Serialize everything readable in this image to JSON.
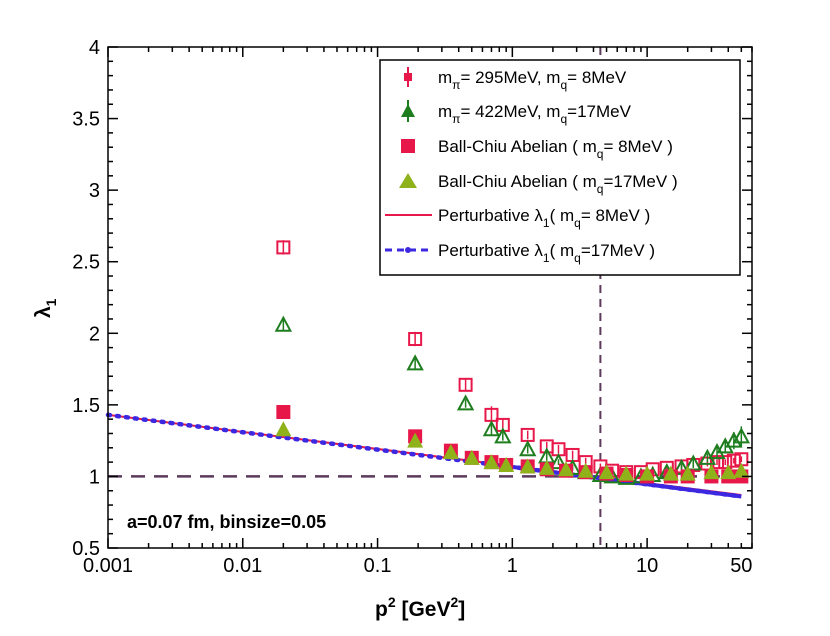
{
  "chart_data": {
    "type": "scatter",
    "xscale": "log",
    "xlim": [
      0.001,
      60
    ],
    "ylim": [
      0.5,
      4
    ],
    "xticks": [
      {
        "value": 0.001,
        "label": "0.001"
      },
      {
        "value": 0.01,
        "label": "0.01"
      },
      {
        "value": 0.1,
        "label": "0.1"
      },
      {
        "value": 1,
        "label": "1"
      },
      {
        "value": 10,
        "label": "10"
      },
      {
        "value": 50,
        "label": "50"
      }
    ],
    "yticks": [
      {
        "value": 0.5,
        "label": "0.5"
      },
      {
        "value": 1,
        "label": "1"
      },
      {
        "value": 1.5,
        "label": "1.5"
      },
      {
        "value": 2,
        "label": "2"
      },
      {
        "value": 2.5,
        "label": "2.5"
      },
      {
        "value": 3,
        "label": "3"
      },
      {
        "value": 3.5,
        "label": "3.5"
      },
      {
        "value": 4,
        "label": "4"
      }
    ],
    "xlabel": {
      "base": "p",
      "sup1": "2",
      "mid": " [GeV",
      "sup2": "2",
      "end": "]"
    },
    "ylabel": {
      "base": "λ",
      "sub": "1"
    },
    "annotation": "a=0.07 fm, binsize=0.05",
    "reference_lines": [
      {
        "orientation": "horizontal",
        "value": 1,
        "style": "dashed",
        "color": "#5b3a5b"
      },
      {
        "orientation": "vertical",
        "value": 4.5,
        "style": "dashed",
        "color": "#5b3a5b"
      }
    ],
    "legend": {
      "position": "top-right",
      "entries": [
        {
          "text": "mπ= 295MeV, mq= 8MeV",
          "parts": {
            "a": "m",
            "a_sub": "π",
            "b": "= 295MeV, m",
            "b_sub": "q",
            "c": "= 8MeV"
          }
        },
        {
          "text": "mπ= 422MeV, mq=17MeV",
          "parts": {
            "a": "m",
            "a_sub": "π",
            "b": "= 422MeV, m",
            "b_sub": "q",
            "c": "=17MeV"
          }
        },
        {
          "text": "Ball-Chiu Abelian ( mq= 8MeV )",
          "parts": {
            "a": "Ball-Chiu Abelian ( m",
            "a_sub": "q",
            "b": "= 8MeV )"
          }
        },
        {
          "text": "Ball-Chiu Abelian ( mq=17MeV )",
          "parts": {
            "a": "Ball-Chiu Abelian ( m",
            "a_sub": "q",
            "b": "=17MeV )"
          }
        },
        {
          "text": "Perturbative λ1( mq= 8MeV )",
          "parts": {
            "a": "Perturbative ",
            "lam": "λ",
            "lam_sub": "1",
            "b": "( m",
            "b_sub": "q",
            "c": "= 8MeV )"
          }
        },
        {
          "text": "Perturbative λ1( mq=17MeV )",
          "parts": {
            "a": "Perturbative ",
            "lam": "λ",
            "lam_sub": "1",
            "b": "( m",
            "b_sub": "q",
            "c": "=17MeV )"
          }
        }
      ]
    },
    "series": [
      {
        "name": "mπ= 295MeV, mq= 8MeV",
        "marker": "open-square",
        "color": "#e8174a",
        "x": [
          0.02,
          0.19,
          0.45,
          0.7,
          0.85,
          1.3,
          1.8,
          2.2,
          2.8,
          3.5,
          4.5,
          5.5,
          7,
          9,
          11,
          14,
          18,
          22,
          28,
          33,
          38,
          44,
          50
        ],
        "y": [
          2.6,
          1.96,
          1.64,
          1.43,
          1.36,
          1.29,
          1.21,
          1.19,
          1.15,
          1.1,
          1.07,
          1.04,
          1.03,
          1.03,
          1.05,
          1.06,
          1.07,
          1.08,
          1.09,
          1.1,
          1.1,
          1.11,
          1.12
        ],
        "err": [
          0.05,
          0.05,
          0.04,
          0.06,
          0.04,
          0.03,
          0.03,
          0.03,
          0.03,
          0.03,
          0.02,
          0.02,
          0.02,
          0.02,
          0.02,
          0.02,
          0.02,
          0.02,
          0.02,
          0.02,
          0.02,
          0.02,
          0.02
        ]
      },
      {
        "name": "mπ= 422MeV, mq=17MeV",
        "marker": "open-triangle",
        "color": "#1e7d1e",
        "x": [
          0.02,
          0.19,
          0.45,
          0.7,
          0.85,
          1.3,
          1.8,
          2.2,
          2.8,
          3.5,
          4.5,
          5.5,
          7,
          9,
          11,
          14,
          18,
          22,
          28,
          33,
          38,
          44,
          50
        ],
        "y": [
          2.06,
          1.79,
          1.51,
          1.33,
          1.28,
          1.19,
          1.14,
          1.1,
          1.06,
          1.03,
          1.01,
          1.0,
          0.99,
          1.0,
          1.01,
          1.03,
          1.06,
          1.09,
          1.13,
          1.17,
          1.21,
          1.25,
          1.28
        ],
        "err": [
          0.04,
          0.04,
          0.03,
          0.04,
          0.03,
          0.03,
          0.03,
          0.02,
          0.02,
          0.02,
          0.02,
          0.02,
          0.02,
          0.02,
          0.02,
          0.02,
          0.03,
          0.03,
          0.03,
          0.04,
          0.05,
          0.06,
          0.07
        ]
      },
      {
        "name": "Ball-Chiu Abelian ( mq= 8MeV )",
        "marker": "filled-square",
        "color": "#e8174a",
        "x": [
          0.02,
          0.19,
          0.35,
          0.5,
          0.7,
          0.9,
          1.3,
          1.8,
          2.5,
          3.5,
          5,
          7,
          10,
          15,
          20,
          30,
          40,
          50
        ],
        "y": [
          1.45,
          1.28,
          1.18,
          1.13,
          1.1,
          1.08,
          1.07,
          1.05,
          1.04,
          1.03,
          1.02,
          1.01,
          1.0,
          1.0,
          1.0,
          1.0,
          1.0,
          1.0
        ]
      },
      {
        "name": "Ball-Chiu Abelian ( mq=17MeV )",
        "marker": "filled-triangle",
        "color": "#8fb21a",
        "x": [
          0.02,
          0.19,
          0.35,
          0.5,
          0.7,
          0.9,
          1.3,
          1.8,
          2.5,
          3.5,
          5,
          7,
          10,
          15,
          20,
          30,
          40,
          50
        ],
        "y": [
          1.33,
          1.25,
          1.17,
          1.13,
          1.1,
          1.08,
          1.07,
          1.06,
          1.05,
          1.04,
          1.03,
          1.02,
          1.02,
          1.02,
          1.02,
          1.03,
          1.03,
          1.04
        ]
      },
      {
        "name": "Perturbative λ1( mq= 8MeV )",
        "marker": "line",
        "color": "#e8174a",
        "x": [
          0.001,
          50
        ],
        "y": [
          1.43,
          0.87
        ]
      },
      {
        "name": "Perturbative λ1( mq=17MeV )",
        "marker": "dash-dot-line",
        "color": "#3b28e0",
        "x": [
          0.001,
          50
        ],
        "y": [
          1.43,
          0.86
        ]
      }
    ]
  }
}
